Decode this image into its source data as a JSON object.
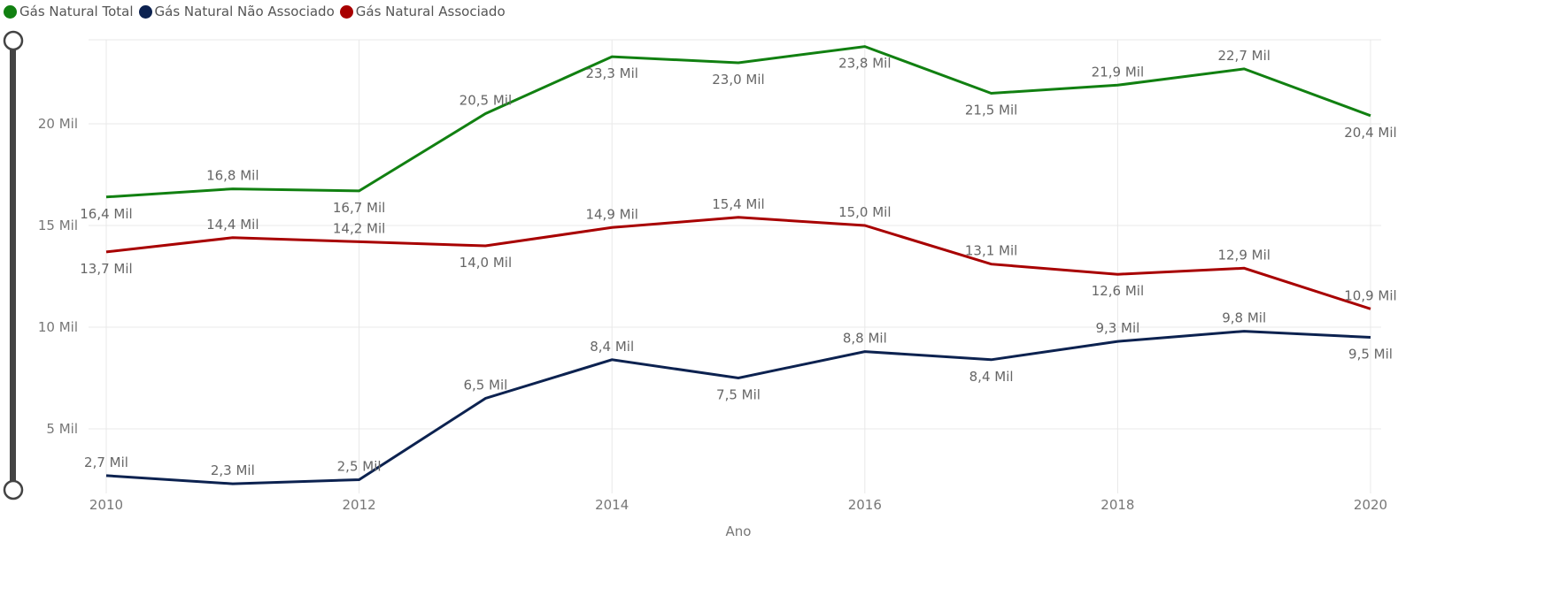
{
  "chart_data": {
    "type": "line",
    "title": "",
    "xlabel": "Ano",
    "ylabel": "",
    "x": [
      2010,
      2011,
      2012,
      2013,
      2014,
      2015,
      2016,
      2017,
      2018,
      2019,
      2020
    ],
    "x_ticks": [
      "2010",
      "2012",
      "2014",
      "2016",
      "2018",
      "2020"
    ],
    "y_ticks": [
      "5 Mil",
      "10 Mil",
      "15 Mil",
      "20 Mil"
    ],
    "ylim": [
      2,
      24.2
    ],
    "xlim": [
      2010,
      2020
    ],
    "grid": true,
    "legend_position": "top-left",
    "series": [
      {
        "name": "Gás Natural Total",
        "color": "#118011",
        "values": [
          16.4,
          16.8,
          16.7,
          20.5,
          23.3,
          23.0,
          23.8,
          21.5,
          21.9,
          22.7,
          20.4
        ],
        "labels": [
          "16,4 Mil",
          "16,8 Mil",
          "16,7 Mil",
          "20,5 Mil",
          "23,3 Mil",
          "23,0 Mil",
          "23,8 Mil",
          "21,5 Mil",
          "21,9 Mil",
          "22,7 Mil",
          "20,4 Mil"
        ]
      },
      {
        "name": "Gás Natural Não Associado",
        "color": "#0c2250",
        "values": [
          2.7,
          2.3,
          2.5,
          6.5,
          8.4,
          7.5,
          8.8,
          8.4,
          9.3,
          9.8,
          9.5
        ],
        "labels": [
          "2,7 Mil",
          "2,3 Mil",
          "2,5 Mil",
          "6,5 Mil",
          "8,4 Mil",
          "7,5 Mil",
          "8,8 Mil",
          "8,4 Mil",
          "9,3 Mil",
          "9,8 Mil",
          "9,5 Mil"
        ]
      },
      {
        "name": "Gás Natural Associado",
        "color": "#a80000",
        "values": [
          13.7,
          14.4,
          14.2,
          14.0,
          14.9,
          15.4,
          15.0,
          13.1,
          12.6,
          12.9,
          10.9
        ],
        "labels": [
          "13,7 Mil",
          "14,4 Mil",
          "14,2 Mil",
          "14,0 Mil",
          "14,9 Mil",
          "15,4 Mil",
          "15,0 Mil",
          "13,1 Mil",
          "12,6 Mil",
          "12,9 Mil",
          "10,9 Mil"
        ]
      }
    ]
  }
}
